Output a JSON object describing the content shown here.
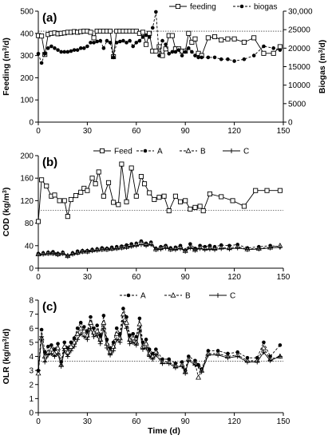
{
  "chart_data": [
    {
      "panel": "(a)",
      "type": "line",
      "ylabel": "Feeding (m³/d)",
      "y2label": "Biogas (m³/d)",
      "ylim": [
        0,
        500
      ],
      "yticks": [
        0,
        100,
        200,
        300,
        400,
        500
      ],
      "y2lim": [
        0,
        30000
      ],
      "y2ticks": [
        "0",
        "5000",
        "10000",
        "15000",
        "20000",
        "25000",
        "30,000"
      ],
      "xlim": [
        0,
        150
      ],
      "xticks": [
        0,
        30,
        60,
        90,
        120,
        150
      ],
      "hline": 410,
      "legend_position": "top",
      "series": [
        {
          "name": "feeding",
          "axis": "left",
          "marker": "square-open",
          "dash": "solid",
          "x": [
            0,
            2,
            4,
            6,
            8,
            10,
            12,
            14,
            16,
            18,
            20,
            22,
            24,
            26,
            28,
            30,
            32,
            34,
            36,
            38,
            40,
            42,
            44,
            46,
            48,
            50,
            52,
            54,
            56,
            58,
            60,
            62,
            64,
            66,
            68,
            70,
            72,
            74,
            76,
            78,
            80,
            82,
            84,
            86,
            88,
            90,
            92,
            94,
            96,
            98,
            100,
            104,
            108,
            112,
            116,
            120,
            126,
            132,
            138,
            144,
            148
          ],
          "y": [
            390,
            388,
            305,
            395,
            400,
            402,
            398,
            400,
            402,
            405,
            405,
            408,
            405,
            408,
            410,
            410,
            405,
            380,
            410,
            410,
            410,
            410,
            410,
            295,
            410,
            410,
            410,
            410,
            410,
            410,
            410,
            400,
            405,
            350,
            400,
            320,
            320,
            340,
            300,
            330,
            390,
            390,
            330,
            330,
            320,
            320,
            400,
            360,
            375,
            310,
            300,
            380,
            385,
            370,
            375,
            375,
            360,
            380,
            310,
            310,
            340
          ]
        },
        {
          "name": "biogas",
          "axis": "right",
          "marker": "circle-filled",
          "dash": "dashed",
          "x": [
            0,
            2,
            4,
            6,
            8,
            10,
            12,
            14,
            16,
            18,
            20,
            22,
            24,
            26,
            28,
            30,
            32,
            34,
            36,
            38,
            40,
            42,
            44,
            46,
            48,
            50,
            52,
            54,
            56,
            58,
            60,
            62,
            64,
            66,
            68,
            70,
            72,
            74,
            76,
            78,
            80,
            82,
            84,
            86,
            88,
            90,
            92,
            94,
            96,
            98,
            100,
            104,
            108,
            112,
            116,
            120,
            126,
            132,
            138,
            144,
            148
          ],
          "y": [
            18500,
            16000,
            18500,
            20000,
            20500,
            20000,
            19500,
            19000,
            19000,
            19000,
            19200,
            19500,
            19500,
            20000,
            20000,
            20500,
            21500,
            21500,
            21800,
            22000,
            20000,
            22000,
            21500,
            17500,
            21500,
            21800,
            22000,
            21500,
            22000,
            20500,
            21500,
            22000,
            23000,
            23500,
            23000,
            25500,
            29800,
            18000,
            22000,
            21000,
            18500,
            19000,
            19000,
            19500,
            18000,
            19000,
            20000,
            19000,
            18000,
            17500,
            17500,
            17500,
            17500,
            17000,
            17000,
            16500,
            17000,
            18000,
            20500,
            20000,
            19500
          ]
        }
      ]
    },
    {
      "panel": "(b)",
      "type": "line",
      "ylabel": "COD (kg/m³)",
      "ylim": [
        0,
        200
      ],
      "yticks": [
        0,
        40,
        80,
        120,
        160,
        200
      ],
      "xlim": [
        0,
        150
      ],
      "xticks": [
        0,
        30,
        60,
        90,
        120,
        150
      ],
      "hline": 103,
      "legend_position": "top",
      "series": [
        {
          "name": "Feed",
          "marker": "square-open",
          "dash": "solid",
          "x": [
            0,
            2,
            5,
            8,
            10,
            13,
            16,
            18,
            20,
            23,
            26,
            28,
            30,
            33,
            35,
            37,
            40,
            43,
            46,
            49,
            51,
            54,
            57,
            60,
            63,
            65,
            68,
            71,
            74,
            77,
            80,
            84,
            87,
            90,
            93,
            96,
            99,
            101,
            105,
            112,
            119,
            126,
            133,
            140,
            148
          ],
          "y": [
            83,
            157,
            146,
            128,
            130,
            120,
            120,
            92,
            122,
            129,
            135,
            142,
            138,
            160,
            150,
            171,
            128,
            152,
            117,
            113,
            185,
            118,
            178,
            128,
            163,
            150,
            134,
            122,
            126,
            128,
            102,
            128,
            118,
            120,
            105,
            108,
            110,
            102,
            132,
            127,
            120,
            110,
            138,
            138,
            138
          ]
        },
        {
          "name": "A",
          "marker": "circle-filled",
          "dash": "dashed",
          "x": [
            0,
            3,
            6,
            9,
            12,
            15,
            18,
            21,
            24,
            27,
            30,
            33,
            36,
            39,
            42,
            45,
            48,
            51,
            54,
            57,
            60,
            63,
            66,
            69,
            72,
            75,
            78,
            81,
            84,
            87,
            90,
            93,
            96,
            99,
            102,
            105,
            108,
            112,
            117,
            122,
            128,
            135,
            142,
            148
          ],
          "y": [
            26,
            27,
            28,
            29,
            26,
            28,
            22,
            27,
            30,
            31,
            31,
            33,
            34,
            36,
            35,
            37,
            38,
            39,
            41,
            43,
            44,
            48,
            44,
            46,
            35,
            38,
            40,
            36,
            37,
            40,
            32,
            43,
            35,
            40,
            38,
            40,
            38,
            41,
            40,
            42,
            36,
            38,
            40,
            38
          ]
        },
        {
          "name": "B",
          "marker": "triangle-open",
          "dash": "dashed",
          "x": [
            0,
            3,
            6,
            9,
            12,
            15,
            18,
            21,
            24,
            27,
            30,
            33,
            36,
            39,
            42,
            45,
            48,
            51,
            54,
            57,
            60,
            63,
            66,
            69,
            72,
            75,
            78,
            81,
            84,
            87,
            90,
            93,
            96,
            99,
            102,
            105,
            108,
            112,
            117,
            122,
            128,
            135,
            142,
            148
          ],
          "y": [
            25,
            26,
            27,
            27,
            25,
            27,
            22,
            26,
            28,
            30,
            30,
            32,
            33,
            34,
            34,
            35,
            36,
            37,
            38,
            40,
            42,
            45,
            42,
            44,
            34,
            36,
            38,
            34,
            35,
            37,
            31,
            38,
            33,
            37,
            35,
            36,
            35,
            37,
            36,
            38,
            34,
            35,
            37,
            40
          ]
        },
        {
          "name": "C",
          "marker": "plus",
          "dash": "solid",
          "x": [
            0,
            3,
            6,
            9,
            12,
            15,
            18,
            21,
            24,
            27,
            30,
            33,
            36,
            39,
            42,
            45,
            48,
            51,
            54,
            57,
            60,
            63,
            66,
            69,
            72,
            75,
            78,
            81,
            84,
            87,
            90,
            93,
            96,
            99,
            102,
            105,
            108,
            112,
            117,
            122,
            128,
            135,
            142,
            148
          ],
          "y": [
            24,
            25,
            26,
            26,
            24,
            26,
            21,
            25,
            27,
            29,
            29,
            31,
            32,
            33,
            33,
            34,
            35,
            36,
            37,
            39,
            40,
            42,
            40,
            42,
            33,
            34,
            36,
            33,
            33,
            35,
            30,
            36,
            32,
            35,
            33,
            34,
            33,
            35,
            34,
            36,
            33,
            34,
            36,
            37
          ]
        }
      ]
    },
    {
      "panel": "(c)",
      "type": "line",
      "ylabel": "OLR (kg/m³/d)",
      "xlabel": "Time (d)",
      "ylim": [
        0,
        8
      ],
      "yticks": [
        0,
        1,
        2,
        3,
        4,
        5,
        6,
        7,
        8
      ],
      "xlim": [
        0,
        150
      ],
      "xticks": [
        0,
        30,
        60,
        90,
        120,
        150
      ],
      "hline": 3.65,
      "legend_position": "top",
      "series": [
        {
          "name": "A",
          "marker": "circle-filled",
          "dash": "dashed",
          "x": [
            0,
            2,
            4,
            6,
            8,
            10,
            12,
            14,
            16,
            18,
            20,
            22,
            24,
            26,
            28,
            30,
            32,
            34,
            36,
            38,
            40,
            42,
            44,
            46,
            48,
            50,
            52,
            54,
            56,
            58,
            60,
            62,
            64,
            66,
            68,
            70,
            72,
            76,
            80,
            84,
            88,
            90,
            92,
            96,
            98,
            100,
            104,
            110,
            116,
            122,
            128,
            134,
            138,
            142,
            148
          ],
          "y": [
            3.0,
            5.9,
            4.3,
            4.7,
            4.8,
            4.5,
            4.9,
            3.6,
            5.0,
            4.6,
            5.0,
            5.3,
            6.0,
            6.4,
            6.1,
            5.8,
            6.8,
            6.0,
            6.2,
            5.5,
            6.9,
            5.2,
            4.6,
            5.0,
            6.0,
            5.6,
            7.4,
            6.8,
            5.5,
            5.6,
            5.4,
            6.7,
            5.0,
            5.2,
            4.5,
            4.2,
            4.5,
            3.8,
            3.8,
            3.5,
            3.6,
            3.0,
            4.0,
            3.7,
            3.4,
            3.1,
            4.4,
            4.4,
            4.2,
            4.3,
            3.9,
            3.9,
            5.0,
            4.0,
            4.8
          ]
        },
        {
          "name": "B",
          "marker": "triangle-open",
          "dash": "dashed",
          "x": [
            0,
            2,
            4,
            6,
            8,
            10,
            12,
            14,
            16,
            18,
            20,
            22,
            24,
            26,
            28,
            30,
            32,
            34,
            36,
            38,
            40,
            42,
            44,
            46,
            48,
            50,
            52,
            54,
            56,
            58,
            60,
            62,
            64,
            66,
            68,
            70,
            72,
            76,
            80,
            84,
            88,
            90,
            92,
            96,
            98,
            100,
            104,
            110,
            116,
            122,
            128,
            134,
            138,
            142,
            148
          ],
          "y": [
            2.8,
            5.3,
            4.0,
            4.3,
            4.5,
            4.2,
            4.6,
            3.4,
            4.7,
            4.3,
            4.7,
            5.0,
            5.6,
            6.0,
            5.8,
            5.5,
            6.4,
            5.7,
            5.8,
            5.2,
            6.4,
            4.9,
            4.3,
            4.7,
            5.6,
            5.3,
            7.0,
            6.4,
            5.2,
            5.3,
            5.0,
            6.3,
            4.7,
            4.9,
            4.2,
            4.0,
            4.3,
            3.6,
            3.6,
            3.3,
            3.4,
            2.9,
            3.8,
            3.5,
            2.5,
            3.0,
            4.2,
            4.2,
            4.0,
            4.1,
            3.7,
            3.7,
            4.6,
            3.8,
            4.0
          ]
        },
        {
          "name": "C",
          "marker": "plus",
          "dash": "solid",
          "x": [
            0,
            2,
            4,
            6,
            8,
            10,
            12,
            14,
            16,
            18,
            20,
            22,
            24,
            26,
            28,
            30,
            32,
            34,
            36,
            38,
            40,
            42,
            44,
            46,
            48,
            50,
            52,
            54,
            56,
            58,
            60,
            62,
            64,
            66,
            68,
            70,
            72,
            76,
            80,
            84,
            88,
            90,
            92,
            96,
            98,
            100,
            104,
            110,
            116,
            122,
            128,
            134,
            138,
            142,
            148
          ],
          "y": [
            3.0,
            5.4,
            3.6,
            4.1,
            4.2,
            4.0,
            4.2,
            3.3,
            4.4,
            4.0,
            4.4,
            4.7,
            5.2,
            5.6,
            5.4,
            5.2,
            6.0,
            5.4,
            5.5,
            4.9,
            6.0,
            4.6,
            4.1,
            4.4,
            5.2,
            5.0,
            6.5,
            6.0,
            4.9,
            5.0,
            4.8,
            5.9,
            4.5,
            4.6,
            4.0,
            3.8,
            4.1,
            3.5,
            3.5,
            3.2,
            3.3,
            2.8,
            3.7,
            3.4,
            3.3,
            2.9,
            4.1,
            4.1,
            3.9,
            4.0,
            3.6,
            3.6,
            4.3,
            3.7,
            4.0
          ]
        }
      ]
    }
  ]
}
